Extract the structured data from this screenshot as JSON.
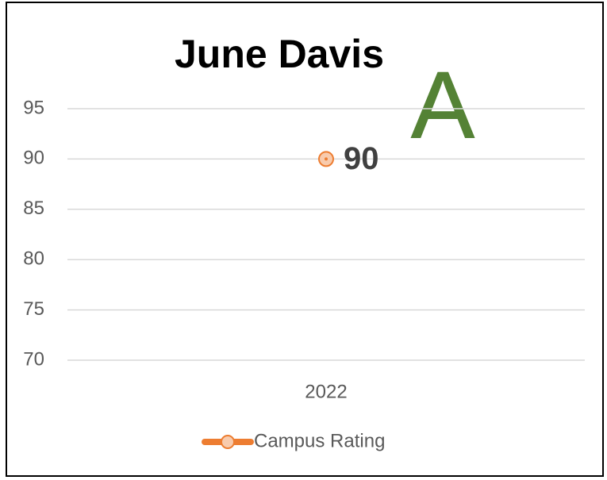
{
  "chart_data": {
    "type": "line",
    "title": "June Davis",
    "annotation": "A",
    "categories": [
      "2022"
    ],
    "series": [
      {
        "name": "Campus Rating",
        "color": "#ed7d31",
        "values": [
          90
        ]
      }
    ],
    "ylim": [
      70,
      95
    ],
    "yticks": [
      70,
      75,
      80,
      85,
      90,
      95
    ],
    "grid": true,
    "legend": "bottom"
  }
}
